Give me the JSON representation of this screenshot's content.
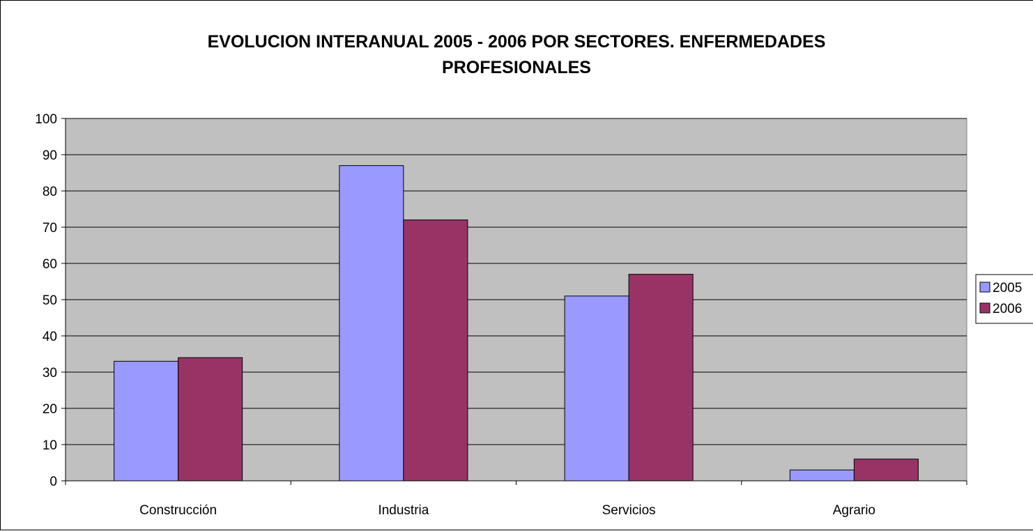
{
  "chart_data": {
    "type": "bar",
    "title_lines": [
      "EVOLUCION INTERANUAL 2005 - 2006 POR SECTORES. ENFERMEDADES",
      "PROFESIONALES"
    ],
    "categories": [
      "Construcción",
      "Industria",
      "Servicios",
      "Agrario"
    ],
    "series": [
      {
        "name": "2005",
        "values": [
          33,
          87,
          51,
          3
        ],
        "color": "#9999ff"
      },
      {
        "name": "2006",
        "values": [
          34,
          72,
          57,
          6
        ],
        "color": "#993366"
      }
    ],
    "ylim": [
      0,
      100
    ],
    "yticks": [
      "0",
      "10",
      "20",
      "30",
      "40",
      "50",
      "60",
      "70",
      "80",
      "90",
      "100"
    ],
    "xlabel": "",
    "ylabel": "",
    "grid": true,
    "legend_position": "right",
    "plot_background": "#c0c0c0"
  }
}
